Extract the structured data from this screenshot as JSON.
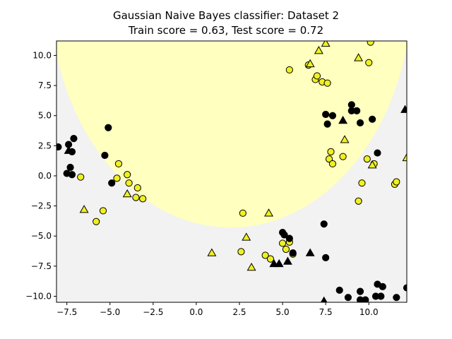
{
  "chart_data": {
    "type": "scatter",
    "title": "Gaussian Naive Bayes classifier: Dataset 2",
    "subtitle": "Train score = 0.63, Test score = 0.72",
    "xlabel": "",
    "ylabel": "",
    "xlim": [
      -8.1,
      12.2
    ],
    "ylim": [
      -10.5,
      11.2
    ],
    "xticks": [
      -7.5,
      -5.0,
      -2.5,
      0.0,
      2.5,
      5.0,
      7.5,
      10.0
    ],
    "xtick_labels": [
      "−7.5",
      "−5.0",
      "−2.5",
      "0.0",
      "2.5",
      "5.0",
      "7.5",
      "10.0"
    ],
    "yticks": [
      -10.0,
      -7.5,
      -5.0,
      -2.5,
      0.0,
      2.5,
      5.0,
      7.5,
      10.0
    ],
    "ytick_labels": [
      "−10.0",
      "−7.5",
      "−5.0",
      "−2.5",
      "0.0",
      "2.5",
      "5.0",
      "7.5",
      "10.0"
    ],
    "grid": false,
    "background_color": "#f2f2f2",
    "decision_region": {
      "shape": "ellipse",
      "center": [
        2.0,
        15.5
      ],
      "radius_x": 10.5,
      "radius_y": 19.8,
      "color": "#ffffbf"
    },
    "class_colors": {
      "yellow": "#f0f020",
      "black": "#000000"
    },
    "series": [
      {
        "class": "yellow",
        "marker": "circle",
        "points": [
          [
            -6.7,
            -0.1
          ],
          [
            -4.5,
            1.0
          ],
          [
            -4.6,
            -0.2
          ],
          [
            -4.0,
            0.1
          ],
          [
            -3.9,
            -0.6
          ],
          [
            -3.4,
            -1.0
          ],
          [
            -3.5,
            -1.8
          ],
          [
            -3.1,
            -1.9
          ],
          [
            -5.4,
            -2.9
          ],
          [
            -5.8,
            -3.8
          ],
          [
            2.7,
            -3.1
          ],
          [
            2.6,
            -6.3
          ],
          [
            4.0,
            -6.6
          ],
          [
            4.3,
            -6.9
          ],
          [
            5.0,
            -5.6
          ],
          [
            5.2,
            -6.1
          ],
          [
            5.6,
            -6.5
          ],
          [
            5.4,
            -5.5
          ],
          [
            5.4,
            8.8
          ],
          [
            6.5,
            9.2
          ],
          [
            6.9,
            8.0
          ],
          [
            7.0,
            8.3
          ],
          [
            7.3,
            7.8
          ],
          [
            7.6,
            7.7
          ],
          [
            7.8,
            2.0
          ],
          [
            7.7,
            1.4
          ],
          [
            7.9,
            1.0
          ],
          [
            8.5,
            1.6
          ],
          [
            9.4,
            -2.1
          ],
          [
            9.6,
            -0.6
          ],
          [
            9.9,
            1.4
          ],
          [
            10.3,
            1.0
          ],
          [
            10.0,
            9.4
          ],
          [
            10.1,
            11.1
          ],
          [
            11.5,
            -0.7
          ],
          [
            11.6,
            -0.5
          ]
        ]
      },
      {
        "class": "black",
        "marker": "circle",
        "points": [
          [
            -8.0,
            2.4
          ],
          [
            -7.4,
            2.6
          ],
          [
            -7.1,
            3.1
          ],
          [
            -7.2,
            2.0
          ],
          [
            -7.3,
            0.7
          ],
          [
            -7.5,
            0.2
          ],
          [
            -7.2,
            0.1
          ],
          [
            -5.1,
            4.0
          ],
          [
            -5.3,
            1.7
          ],
          [
            -4.9,
            -0.6
          ],
          [
            7.4,
            -4.0
          ],
          [
            7.5,
            -6.8
          ],
          [
            5.0,
            -4.7
          ],
          [
            5.1,
            -4.9
          ],
          [
            5.4,
            -5.2
          ],
          [
            5.6,
            -6.4
          ],
          [
            7.5,
            5.1
          ],
          [
            7.9,
            5.0
          ],
          [
            7.6,
            4.3
          ],
          [
            9.0,
            5.9
          ],
          [
            9.0,
            5.4
          ],
          [
            9.3,
            5.4
          ],
          [
            9.5,
            4.4
          ],
          [
            10.2,
            4.7
          ],
          [
            10.5,
            1.9
          ],
          [
            8.3,
            -9.5
          ],
          [
            8.8,
            -10.1
          ],
          [
            9.5,
            -9.6
          ],
          [
            9.5,
            -10.3
          ],
          [
            9.8,
            -10.3
          ],
          [
            10.4,
            -10.0
          ],
          [
            10.5,
            -9.0
          ],
          [
            10.7,
            -10.0
          ],
          [
            10.8,
            -9.2
          ],
          [
            11.6,
            -10.1
          ],
          [
            12.2,
            -9.3
          ]
        ]
      },
      {
        "class": "yellow",
        "marker": "triangle",
        "points": [
          [
            -6.5,
            -2.8
          ],
          [
            -4.0,
            -1.5
          ],
          [
            0.9,
            -6.4
          ],
          [
            2.9,
            -5.1
          ],
          [
            3.2,
            -7.6
          ],
          [
            4.2,
            -3.1
          ],
          [
            6.6,
            9.3
          ],
          [
            7.1,
            10.4
          ],
          [
            7.5,
            11.0
          ],
          [
            8.6,
            3.0
          ],
          [
            9.4,
            9.8
          ],
          [
            10.2,
            0.9
          ],
          [
            12.2,
            1.5
          ]
        ]
      },
      {
        "class": "black",
        "marker": "triangle",
        "points": [
          [
            -7.4,
            2.1
          ],
          [
            4.5,
            -7.3
          ],
          [
            4.8,
            -7.3
          ],
          [
            5.3,
            -7.1
          ],
          [
            6.6,
            -6.4
          ],
          [
            7.4,
            -10.4
          ],
          [
            8.5,
            4.6
          ],
          [
            12.1,
            5.5
          ]
        ]
      }
    ]
  }
}
